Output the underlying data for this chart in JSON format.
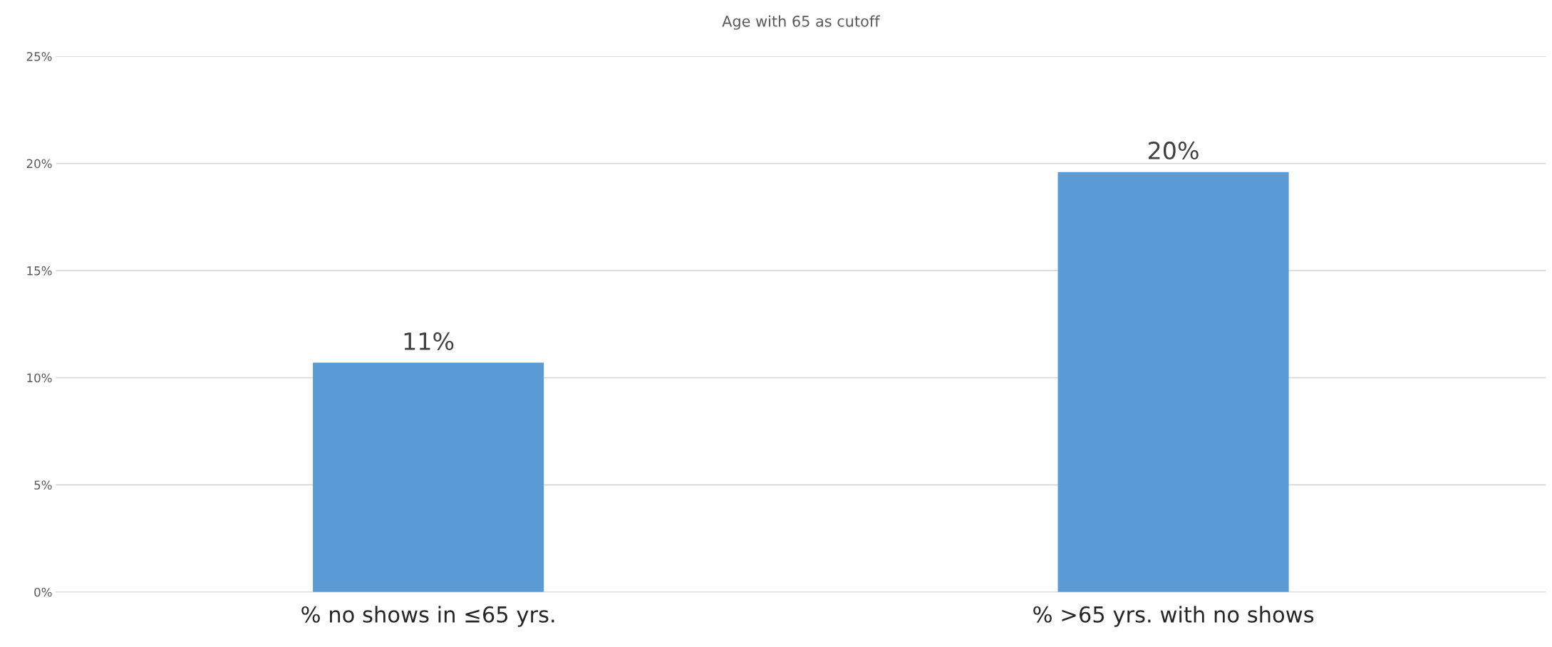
{
  "chart_data": {
    "type": "bar",
    "title": "Age with 65 as cutoff",
    "categories": [
      "% no shows in ≤65 yrs.",
      "% >65 yrs. with no shows"
    ],
    "values": [
      10.7,
      19.6
    ],
    "color": "#5b9bd5",
    "value_labels": [
      "11%",
      "20%"
    ],
    "ylim": [
      0,
      25
    ],
    "yticks": [
      {
        "value": 0,
        "label": "0%"
      },
      {
        "value": 5,
        "label": "5%"
      },
      {
        "value": 10,
        "label": "10%"
      },
      {
        "value": 15,
        "label": "15%"
      },
      {
        "value": 20,
        "label": "20%"
      },
      {
        "value": 25,
        "label": "25%"
      }
    ],
    "grid": "y",
    "legend": false
  }
}
